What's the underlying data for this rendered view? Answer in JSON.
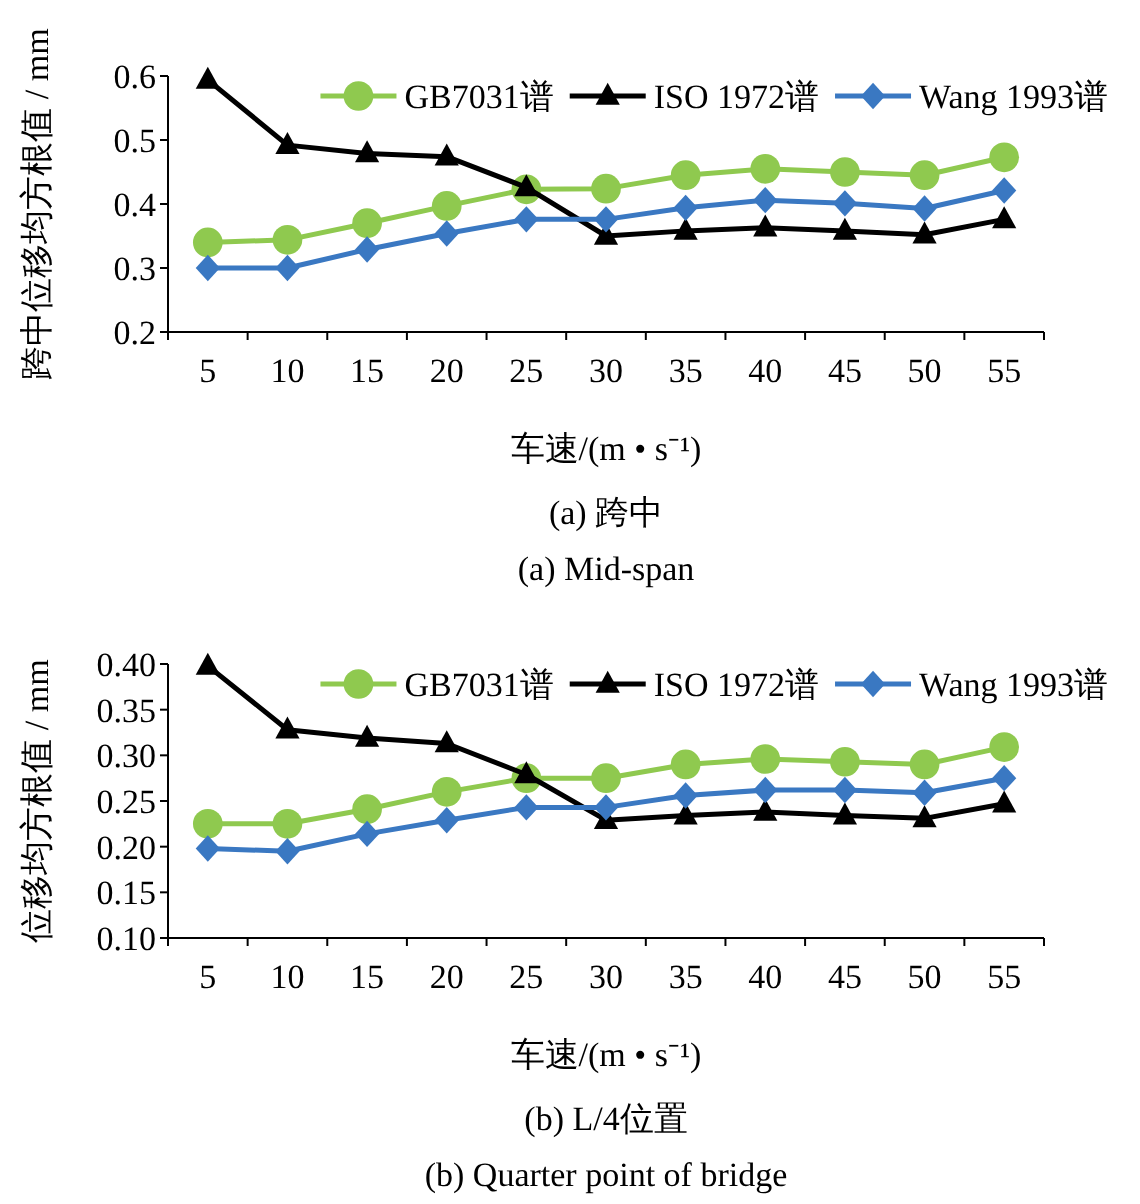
{
  "chart_data": [
    {
      "type": "line",
      "title": "(a)  跨中",
      "subtitle": "(a)  Mid-span",
      "xlabel": "车速/(m • s⁻¹)",
      "ylabel": "跨中位移均方根值 / mm",
      "categories": [
        "5",
        "10",
        "15",
        "20",
        "25",
        "30",
        "35",
        "40",
        "45",
        "50",
        "55"
      ],
      "ylim": [
        0.2,
        0.6
      ],
      "yticks": [
        0.2,
        0.3,
        0.4,
        0.5,
        0.6
      ],
      "legend": "top right",
      "grid": false,
      "series": [
        {
          "name": "GB7031谱",
          "color": "#8fc94f",
          "marker": "circle",
          "values": [
            0.34,
            0.344,
            0.37,
            0.397,
            0.423,
            0.424,
            0.445,
            0.455,
            0.45,
            0.445,
            0.473
          ]
        },
        {
          "name": "ISO 1972谱",
          "color": "#000000",
          "marker": "triangle",
          "values": [
            0.594,
            0.492,
            0.479,
            0.474,
            0.426,
            0.35,
            0.358,
            0.363,
            0.358,
            0.352,
            0.376
          ]
        },
        {
          "name": "Wang 1993谱",
          "color": "#3a78c2",
          "marker": "diamond",
          "values": [
            0.3,
            0.3,
            0.329,
            0.354,
            0.376,
            0.376,
            0.394,
            0.406,
            0.401,
            0.393,
            0.421
          ]
        }
      ]
    },
    {
      "type": "line",
      "title": "(b)  L/4位置",
      "subtitle": "(b)  Quarter point of bridge",
      "xlabel": "车速/(m • s⁻¹)",
      "ylabel": "位移均方根值 / mm",
      "categories": [
        "5",
        "10",
        "15",
        "20",
        "25",
        "30",
        "35",
        "40",
        "45",
        "50",
        "55"
      ],
      "ylim": [
        0.1,
        0.4
      ],
      "yticks": [
        {
          "value": 0.1,
          "label": "0.10"
        },
        {
          "value": 0.15,
          "label": "0.15"
        },
        {
          "value": 0.2,
          "label": "0.20"
        },
        {
          "value": 0.25,
          "label": "0.25"
        },
        {
          "value": 0.3,
          "label": "0.30"
        },
        {
          "value": 0.35,
          "label": "0.35"
        },
        {
          "value": 0.4,
          "label": "0.40"
        }
      ],
      "legend": "top right",
      "grid": false,
      "series": [
        {
          "name": "GB7031谱",
          "color": "#8fc94f",
          "marker": "circle",
          "values": [
            0.225,
            0.225,
            0.241,
            0.26,
            0.275,
            0.275,
            0.29,
            0.296,
            0.293,
            0.29,
            0.309
          ]
        },
        {
          "name": "ISO 1972谱",
          "color": "#000000",
          "marker": "triangle",
          "values": [
            0.398,
            0.328,
            0.319,
            0.313,
            0.279,
            0.229,
            0.234,
            0.238,
            0.234,
            0.231,
            0.247
          ]
        },
        {
          "name": "Wang 1993谱",
          "color": "#3a78c2",
          "marker": "diamond",
          "values": [
            0.198,
            0.195,
            0.214,
            0.229,
            0.243,
            0.243,
            0.256,
            0.262,
            0.262,
            0.259,
            0.275
          ]
        }
      ]
    }
  ]
}
